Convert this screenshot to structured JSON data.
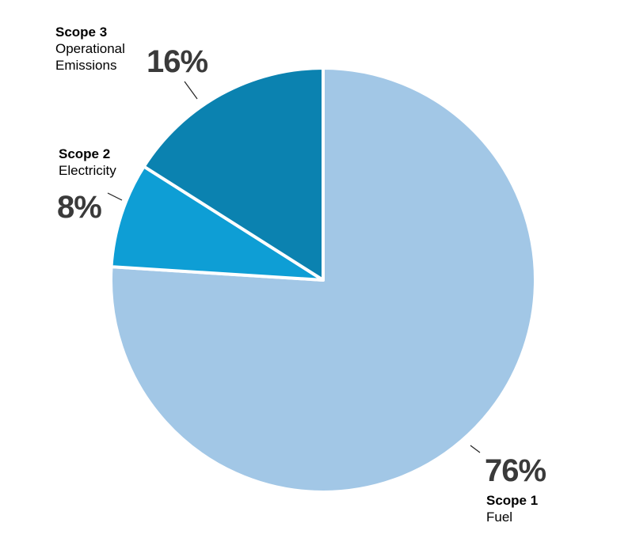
{
  "chart_data": {
    "type": "pie",
    "start_angle_deg": 90,
    "direction": "clockwise",
    "slices": [
      {
        "name": "Scope 1",
        "description": "Fuel",
        "value": 76,
        "label": "76%",
        "color": "#a2c7e6"
      },
      {
        "name": "Scope 2",
        "description": "Electricity",
        "value": 8,
        "label": "8%",
        "color": "#0e9ed5"
      },
      {
        "name": "Scope 3",
        "description": "Operational Emissions",
        "value": 16,
        "label": "16%",
        "color": "#0b82b0"
      }
    ],
    "legend": "none"
  },
  "labels": {
    "scope3": {
      "name": "Scope 3",
      "desc_line1": "Operational",
      "desc_line2": "Emissions",
      "pct": "16%"
    },
    "scope2": {
      "name": "Scope 2",
      "desc": "Electricity",
      "pct": "8%"
    },
    "scope1": {
      "name": "Scope 1",
      "desc": "Fuel",
      "pct": "76%"
    }
  }
}
